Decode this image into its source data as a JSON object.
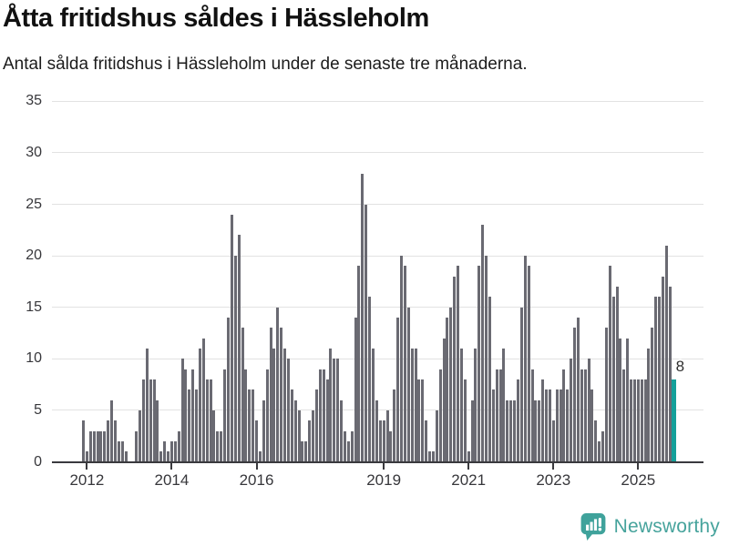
{
  "header": {
    "title": "Åtta fritidshus såldes i Hässleholm",
    "subtitle": "Antal sålda fritidshus i Hässleholm under de senaste tre månaderna."
  },
  "chart_data": {
    "type": "bar",
    "title": "Åtta fritidshus såldes i Hässleholm",
    "subtitle": "Antal sålda fritidshus i Hässleholm under de senaste tre månaderna.",
    "x_frequency": "monthly",
    "start_month": "2011-12",
    "end_month": "2025-11",
    "values": [
      4,
      1,
      3,
      3,
      3,
      3,
      3,
      4,
      6,
      4,
      2,
      2,
      1,
      0,
      0,
      3,
      5,
      8,
      11,
      8,
      8,
      6,
      1,
      2,
      1,
      2,
      2,
      3,
      10,
      9,
      7,
      9,
      7,
      11,
      12,
      8,
      8,
      5,
      3,
      3,
      9,
      14,
      24,
      20,
      22,
      13,
      9,
      7,
      7,
      4,
      1,
      6,
      9,
      13,
      11,
      15,
      13,
      11,
      10,
      7,
      6,
      5,
      2,
      2,
      4,
      5,
      7,
      9,
      9,
      8,
      11,
      10,
      10,
      6,
      3,
      2,
      3,
      14,
      19,
      28,
      25,
      16,
      11,
      6,
      4,
      4,
      5,
      3,
      7,
      14,
      20,
      19,
      15,
      11,
      11,
      8,
      8,
      4,
      1,
      1,
      5,
      9,
      12,
      14,
      15,
      18,
      19,
      11,
      8,
      1,
      6,
      11,
      19,
      23,
      20,
      16,
      7,
      9,
      9,
      11,
      6,
      6,
      6,
      8,
      15,
      20,
      19,
      9,
      6,
      6,
      8,
      7,
      7,
      4,
      7,
      7,
      9,
      7,
      10,
      13,
      14,
      9,
      9,
      10,
      7,
      4,
      2,
      3,
      13,
      19,
      16,
      17,
      12,
      9,
      12,
      8,
      8,
      8,
      8,
      8,
      11,
      13,
      16,
      16,
      18,
      21,
      17,
      8
    ],
    "ylim": [
      0,
      35
    ],
    "y_ticks": [
      0,
      5,
      10,
      15,
      20,
      25,
      30,
      35
    ],
    "x_ticks": [
      2012,
      2014,
      2016,
      2019,
      2021,
      2023,
      2025
    ],
    "grid": true,
    "legend": "none",
    "highlight": {
      "position": "last",
      "value": 8,
      "label": "8"
    },
    "colors": {
      "bar": "#6a6a72",
      "highlight": "#14a09a",
      "brand": "#46a39c"
    }
  },
  "footer": {
    "brand": "Newsworthy"
  }
}
